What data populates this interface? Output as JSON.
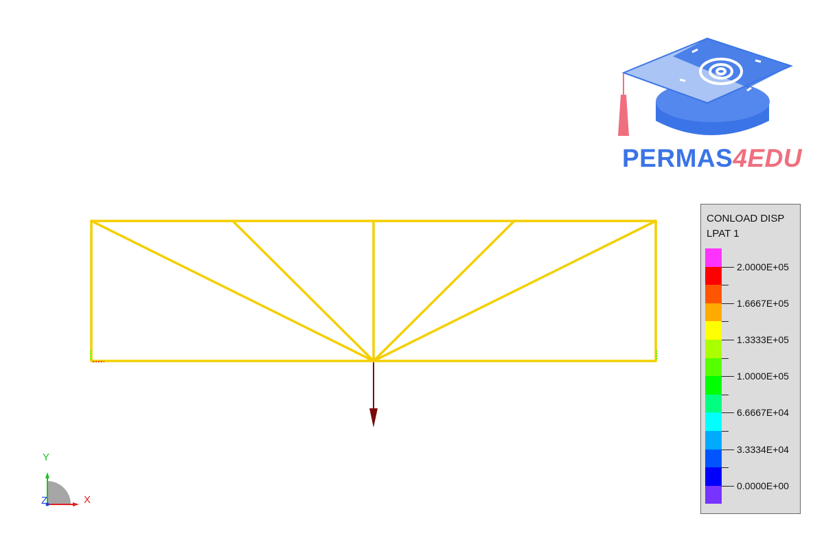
{
  "logo": {
    "brand_main": "PERMAS",
    "brand_accent": "4EDU",
    "colors": {
      "primary": "#3b74e6",
      "accent": "#ef6f7f"
    }
  },
  "model": {
    "element_color": "#f4cf00",
    "load_arrow_color": "#7a0a0a"
  },
  "legend": {
    "title": "CONLOAD DISP\nLPAT 1",
    "colors": [
      "#ff33ff",
      "#ff0000",
      "#ff5500",
      "#ffaa00",
      "#ffff00",
      "#aaff00",
      "#55ff00",
      "#00ff00",
      "#00ff80",
      "#00ffff",
      "#00aaff",
      "#0055ff",
      "#0000ff",
      "#7733ff"
    ],
    "labels": [
      "2.0000E+05",
      "1.6667E+05",
      "1.3333E+05",
      "1.0000E+05",
      "6.6667E+04",
      "3.3334E+04",
      "0.0000E+00"
    ]
  },
  "triad": {
    "x_label": "X",
    "y_label": "Y",
    "z_label": "Z",
    "x_color": "#e02020",
    "y_color": "#20c020",
    "z_color": "#2040e0"
  }
}
